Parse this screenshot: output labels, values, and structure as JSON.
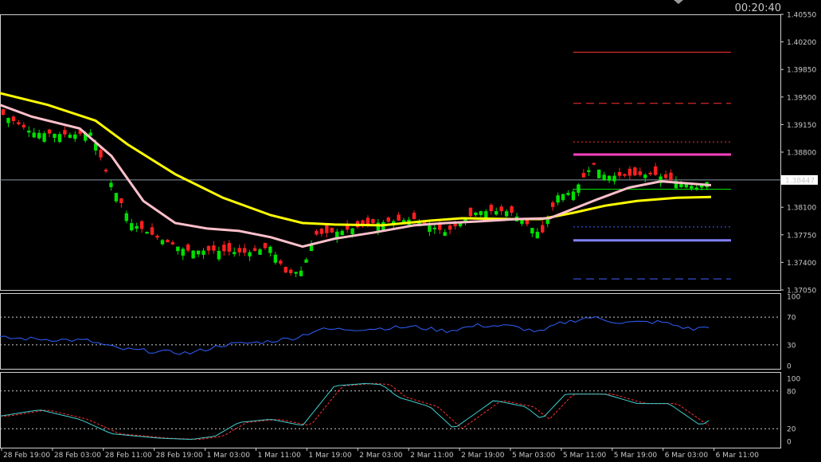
{
  "clock": "00:20:40",
  "current_price": "1.38447",
  "chart_data": [
    {
      "type": "candlestick",
      "panel": "price",
      "ylim": [
        1.3705,
        1.4055
      ],
      "yticks": [
        "1.40550",
        "1.40200",
        "1.39850",
        "1.39500",
        "1.39150",
        "1.38800",
        "1.38447",
        "1.38100",
        "1.37750",
        "1.37400",
        "1.37050"
      ],
      "bull_color": "#00e000",
      "bear_color": "#ff2020",
      "ma_colors": {
        "slow": "#ffff00",
        "fast": "#ffc0cb"
      },
      "xlabels": [
        "28 Feb 19:00",
        "28 Feb 03:00",
        "28 Feb 11:00",
        "28 Feb 19:00",
        "1 Mar 03:00",
        "1 Mar 11:00",
        "1 Mar 19:00",
        "2 Mar 03:00",
        "2 Mar 11:00",
        "2 Mar 19:00",
        "5 Mar 03:00",
        "5 Mar 11:00",
        "5 Mar 19:00",
        "6 Mar 03:00",
        "6 Mar 11:00"
      ],
      "levels": [
        {
          "price": 1.4007,
          "color": "#ff3030",
          "style": "solid"
        },
        {
          "price": 1.3942,
          "color": "#ff3030",
          "style": "dashed"
        },
        {
          "price": 1.3893,
          "color": "#ff3030",
          "style": "dotted"
        },
        {
          "price": 1.3877,
          "color": "#ff40c0",
          "style": "thick"
        },
        {
          "price": 1.3833,
          "color": "#00e000",
          "style": "solid"
        },
        {
          "price": 1.3785,
          "color": "#4060ff",
          "style": "dotted"
        },
        {
          "price": 1.3768,
          "color": "#8080ff",
          "style": "thick"
        },
        {
          "price": 1.3719,
          "color": "#4060ff",
          "style": "dashed"
        }
      ]
    },
    {
      "type": "line",
      "panel": "rsi",
      "ylim": [
        0,
        100
      ],
      "yticks": [
        "100",
        "70",
        "30",
        "0"
      ],
      "levels": [
        70,
        30
      ],
      "series_color": "#3060ff"
    },
    {
      "type": "line",
      "panel": "stochastic",
      "ylim": [
        0,
        100
      ],
      "yticks": [
        "100",
        "80",
        "20",
        "0"
      ],
      "levels": [
        80,
        20
      ],
      "main_color": "#40d0d0",
      "signal_color": "#ff3030"
    }
  ]
}
